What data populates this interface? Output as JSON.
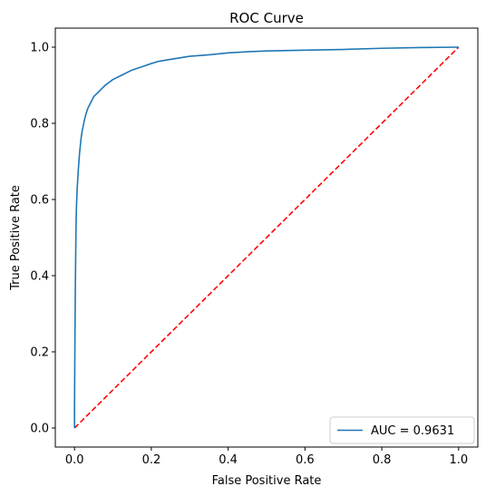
{
  "chart_data": {
    "type": "line",
    "title": "ROC Curve",
    "xlabel": "False Positive Rate",
    "ylabel": "True Positive Rate",
    "xlim": [
      -0.05,
      1.05
    ],
    "ylim": [
      -0.05,
      1.05
    ],
    "xticks": [
      0.0,
      0.2,
      0.4,
      0.6,
      0.8,
      1.0
    ],
    "yticks": [
      0.0,
      0.2,
      0.4,
      0.6,
      0.8,
      1.0
    ],
    "xtick_labels": [
      "0.0",
      "0.2",
      "0.4",
      "0.6",
      "0.8",
      "1.0"
    ],
    "ytick_labels": [
      "0.0",
      "0.2",
      "0.4",
      "0.6",
      "0.8",
      "1.0"
    ],
    "grid": false,
    "legend_position": "bottom-right",
    "series": [
      {
        "name": "AUC = 0.9631",
        "color": "#1f77b4",
        "style": "solid",
        "x": [
          0.0,
          0.0,
          0.001,
          0.002,
          0.003,
          0.004,
          0.005,
          0.007,
          0.01,
          0.013,
          0.017,
          0.02,
          0.025,
          0.03,
          0.035,
          0.04,
          0.05,
          0.06,
          0.07,
          0.08,
          0.1,
          0.12,
          0.15,
          0.18,
          0.2,
          0.22,
          0.25,
          0.3,
          0.35,
          0.4,
          0.45,
          0.5,
          0.6,
          0.7,
          0.8,
          0.9,
          1.0
        ],
        "y": [
          0.0,
          0.05,
          0.22,
          0.35,
          0.45,
          0.53,
          0.58,
          0.63,
          0.68,
          0.72,
          0.76,
          0.78,
          0.805,
          0.825,
          0.84,
          0.85,
          0.87,
          0.88,
          0.89,
          0.9,
          0.915,
          0.925,
          0.94,
          0.95,
          0.957,
          0.963,
          0.968,
          0.976,
          0.98,
          0.985,
          0.988,
          0.99,
          0.992,
          0.994,
          0.997,
          0.999,
          1.0
        ]
      },
      {
        "name": "",
        "color": "#ff0000",
        "style": "dashed",
        "x": [
          0.0,
          1.0
        ],
        "y": [
          0.0,
          1.0
        ]
      }
    ]
  }
}
